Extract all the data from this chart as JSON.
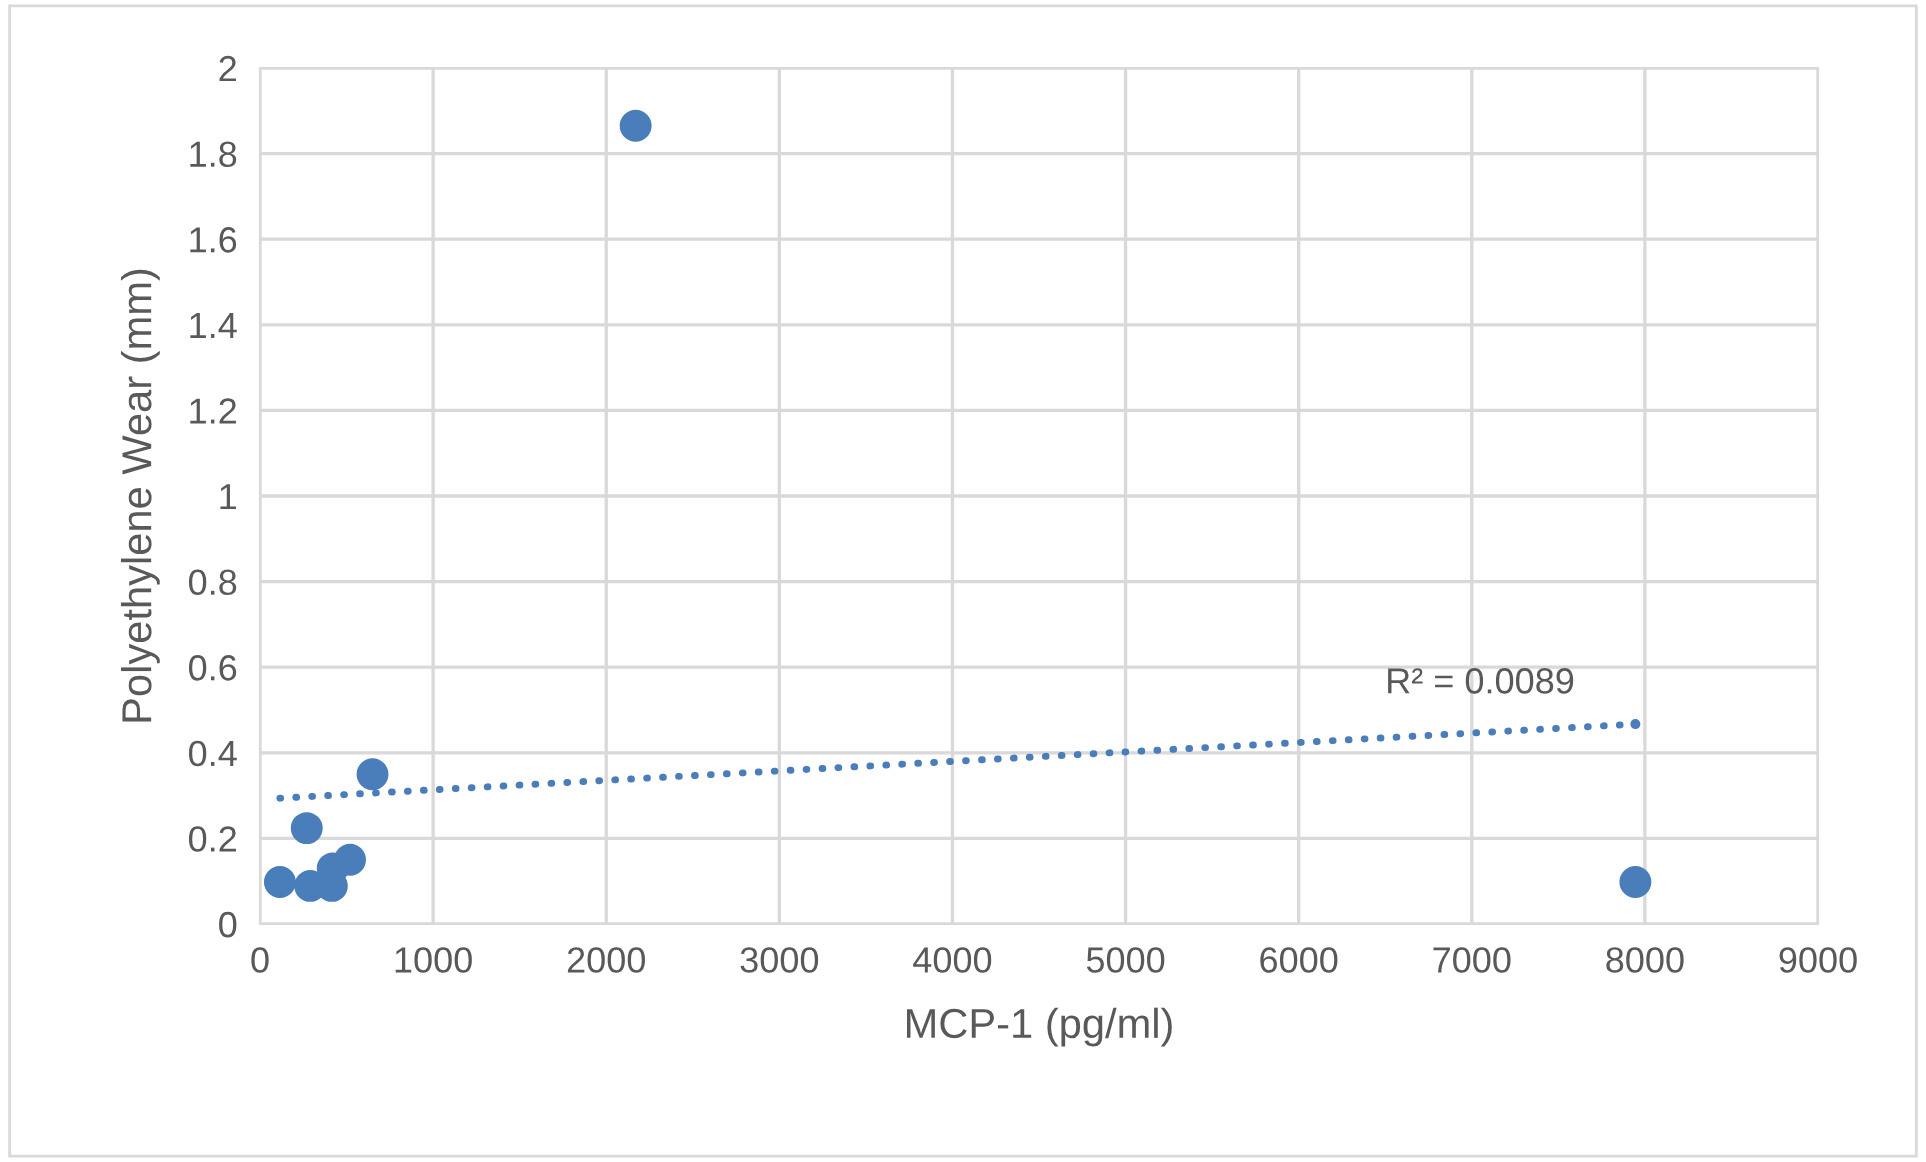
{
  "chart_data": {
    "type": "scatter",
    "xlabel": "MCP-1 (pg/ml)",
    "ylabel": "Polyethylene Wear (mm)",
    "xlim": [
      0,
      9000
    ],
    "xticks": [
      0,
      1000,
      2000,
      3000,
      4000,
      5000,
      6000,
      7000,
      8000,
      9000
    ],
    "ylim": [
      0,
      2
    ],
    "yticks": [
      0,
      0.2,
      0.4,
      0.6,
      0.8,
      1,
      1.2,
      1.4,
      1.6,
      1.8,
      2
    ],
    "grid": true,
    "series": [
      {
        "color": "#4a7ebb",
        "marker": "circle",
        "x": [
          115,
          290,
          415,
          420,
          520,
          270,
          650,
          2170,
          7945
        ],
        "values": [
          0.098,
          0.089,
          0.089,
          0.13,
          0.15,
          0.224,
          0.35,
          1.865,
          0.098
        ]
      },
      {
        "type": "line",
        "color": "#4a7ebb",
        "line_style": "dotted",
        "marker": "none",
        "x": [
          115,
          7945
        ],
        "values": [
          0.294,
          0.467
        ]
      }
    ],
    "annotations": [
      "R² = 0.0089"
    ]
  }
}
